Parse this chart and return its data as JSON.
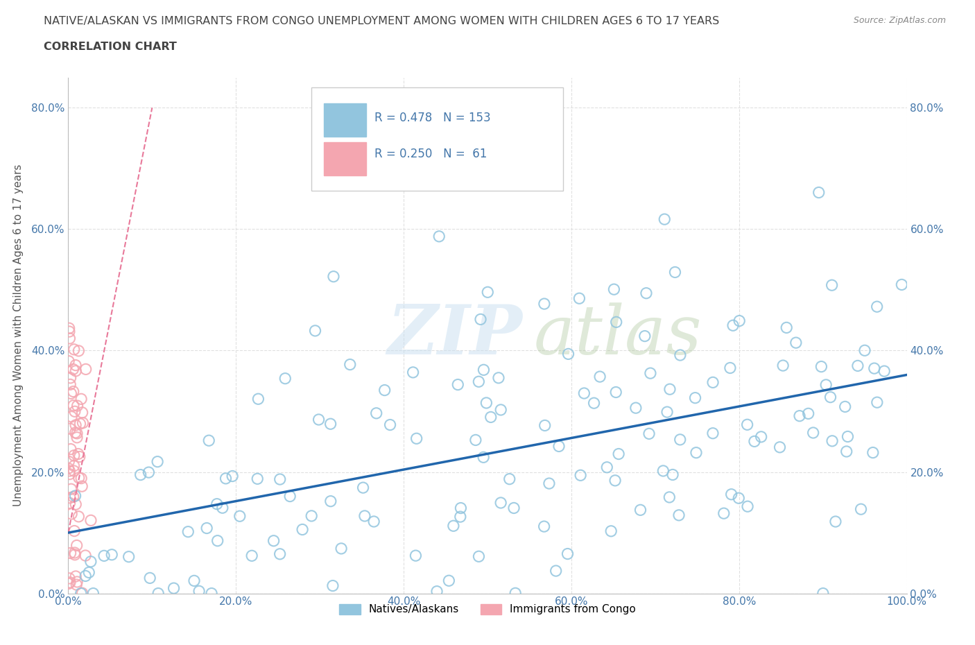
{
  "title_line1": "NATIVE/ALASKAN VS IMMIGRANTS FROM CONGO UNEMPLOYMENT AMONG WOMEN WITH CHILDREN AGES 6 TO 17 YEARS",
  "title_line2": "CORRELATION CHART",
  "source_text": "Source: ZipAtlas.com",
  "ylabel": "Unemployment Among Women with Children Ages 6 to 17 years",
  "xlim": [
    0,
    100
  ],
  "ylim": [
    0,
    85
  ],
  "xtick_labels": [
    "0.0%",
    "20.0%",
    "40.0%",
    "60.0%",
    "80.0%",
    "100.0%"
  ],
  "xtick_values": [
    0,
    20,
    40,
    60,
    80,
    100
  ],
  "ytick_labels": [
    "0.0%",
    "20.0%",
    "40.0%",
    "60.0%",
    "80.0%"
  ],
  "ytick_values": [
    0,
    20,
    40,
    60,
    80
  ],
  "blue_color": "#92c5de",
  "pink_color": "#f4a6b0",
  "trend_blue": "#2166ac",
  "trend_pink": "#e8799a",
  "title_color": "#444444",
  "axis_label_color": "#555555",
  "tick_color": "#4477aa",
  "legend_R1": "R = 0.478",
  "legend_N1": "N = 153",
  "legend_R2": "R = 0.250",
  "legend_N2": "N =  61",
  "watermark_zip": "ZIP",
  "watermark_atlas": "atlas",
  "series1_label": "Natives/Alaskans",
  "series2_label": "Immigrants from Congo",
  "blue_trend_x0": 0,
  "blue_trend_x1": 100,
  "blue_trend_y0": 10,
  "blue_trend_y1": 36,
  "pink_trend_x0": 0,
  "pink_trend_x1": 10,
  "pink_trend_y0": 10,
  "pink_trend_y1": 80,
  "background_color": "#ffffff",
  "grid_color": "#e0e0e0"
}
